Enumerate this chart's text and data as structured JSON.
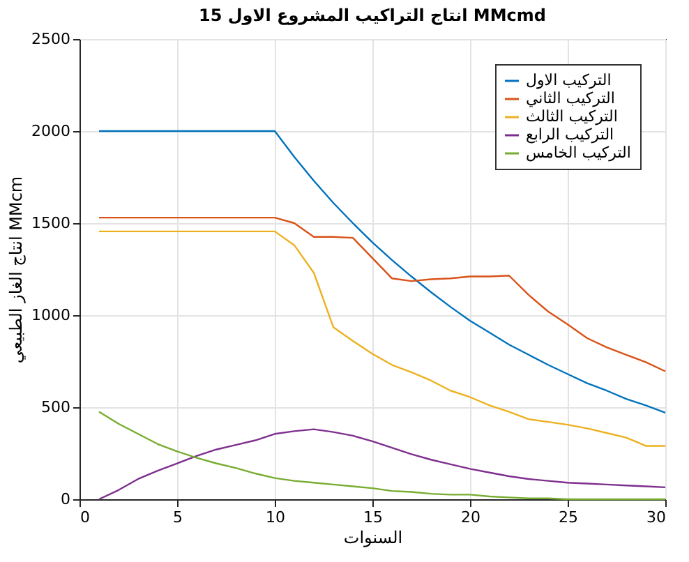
{
  "chart_data": {
    "type": "line",
    "title": "انتاج التراكيب المشروع الاول 15 MMcmd",
    "xlabel": "السنوات",
    "ylabel": "انتاج الغاز الطبيعي MMcm",
    "x": [
      1,
      2,
      3,
      4,
      5,
      6,
      7,
      8,
      9,
      10,
      11,
      12,
      13,
      14,
      15,
      16,
      17,
      18,
      19,
      20,
      21,
      22,
      23,
      24,
      25,
      26,
      27,
      28,
      29,
      30
    ],
    "series": [
      {
        "name": "التركيب الاول",
        "color": "#0072bd",
        "values": [
          2000,
          2000,
          2000,
          2000,
          2000,
          2000,
          2000,
          2000,
          2000,
          2000,
          1860,
          1730,
          1610,
          1500,
          1395,
          1300,
          1210,
          1125,
          1045,
          970,
          905,
          840,
          785,
          730,
          680,
          630,
          590,
          545,
          510,
          470
        ]
      },
      {
        "name": "التركيب الثاني",
        "color": "#d95319",
        "values": [
          1530,
          1530,
          1530,
          1530,
          1530,
          1530,
          1530,
          1530,
          1530,
          1530,
          1500,
          1425,
          1425,
          1420,
          1310,
          1200,
          1185,
          1195,
          1200,
          1210,
          1210,
          1215,
          1110,
          1020,
          950,
          875,
          825,
          785,
          745,
          695
        ]
      },
      {
        "name": "التركيب الثالث",
        "color": "#edb120",
        "values": [
          1455,
          1455,
          1455,
          1455,
          1455,
          1455,
          1455,
          1455,
          1455,
          1455,
          1380,
          1230,
          935,
          860,
          790,
          730,
          690,
          645,
          590,
          555,
          510,
          475,
          435,
          420,
          405,
          385,
          360,
          335,
          290,
          290
        ]
      },
      {
        "name": "التركيب الرابع",
        "color": "#7e2f8e",
        "values": [
          0,
          50,
          110,
          155,
          195,
          235,
          270,
          295,
          320,
          355,
          370,
          380,
          365,
          345,
          315,
          280,
          245,
          215,
          190,
          165,
          145,
          125,
          110,
          100,
          90,
          85,
          80,
          75,
          70,
          65
        ]
      },
      {
        "name": "التركيب الخامس",
        "color": "#77ac30",
        "values": [
          475,
          410,
          355,
          300,
          260,
          225,
          195,
          170,
          140,
          115,
          100,
          90,
          80,
          70,
          60,
          45,
          40,
          30,
          25,
          25,
          15,
          10,
          5,
          5,
          0,
          0,
          0,
          0,
          0,
          0
        ]
      }
    ],
    "xlim": [
      0,
      30
    ],
    "xticks": [
      0,
      5,
      10,
      15,
      20,
      25,
      30
    ],
    "ylim": [
      0,
      2500
    ],
    "yticks": [
      0,
      500,
      1000,
      1500,
      2000,
      2500
    ],
    "grid": true,
    "legend": "top right",
    "marker": "none",
    "line_style": "solid"
  }
}
